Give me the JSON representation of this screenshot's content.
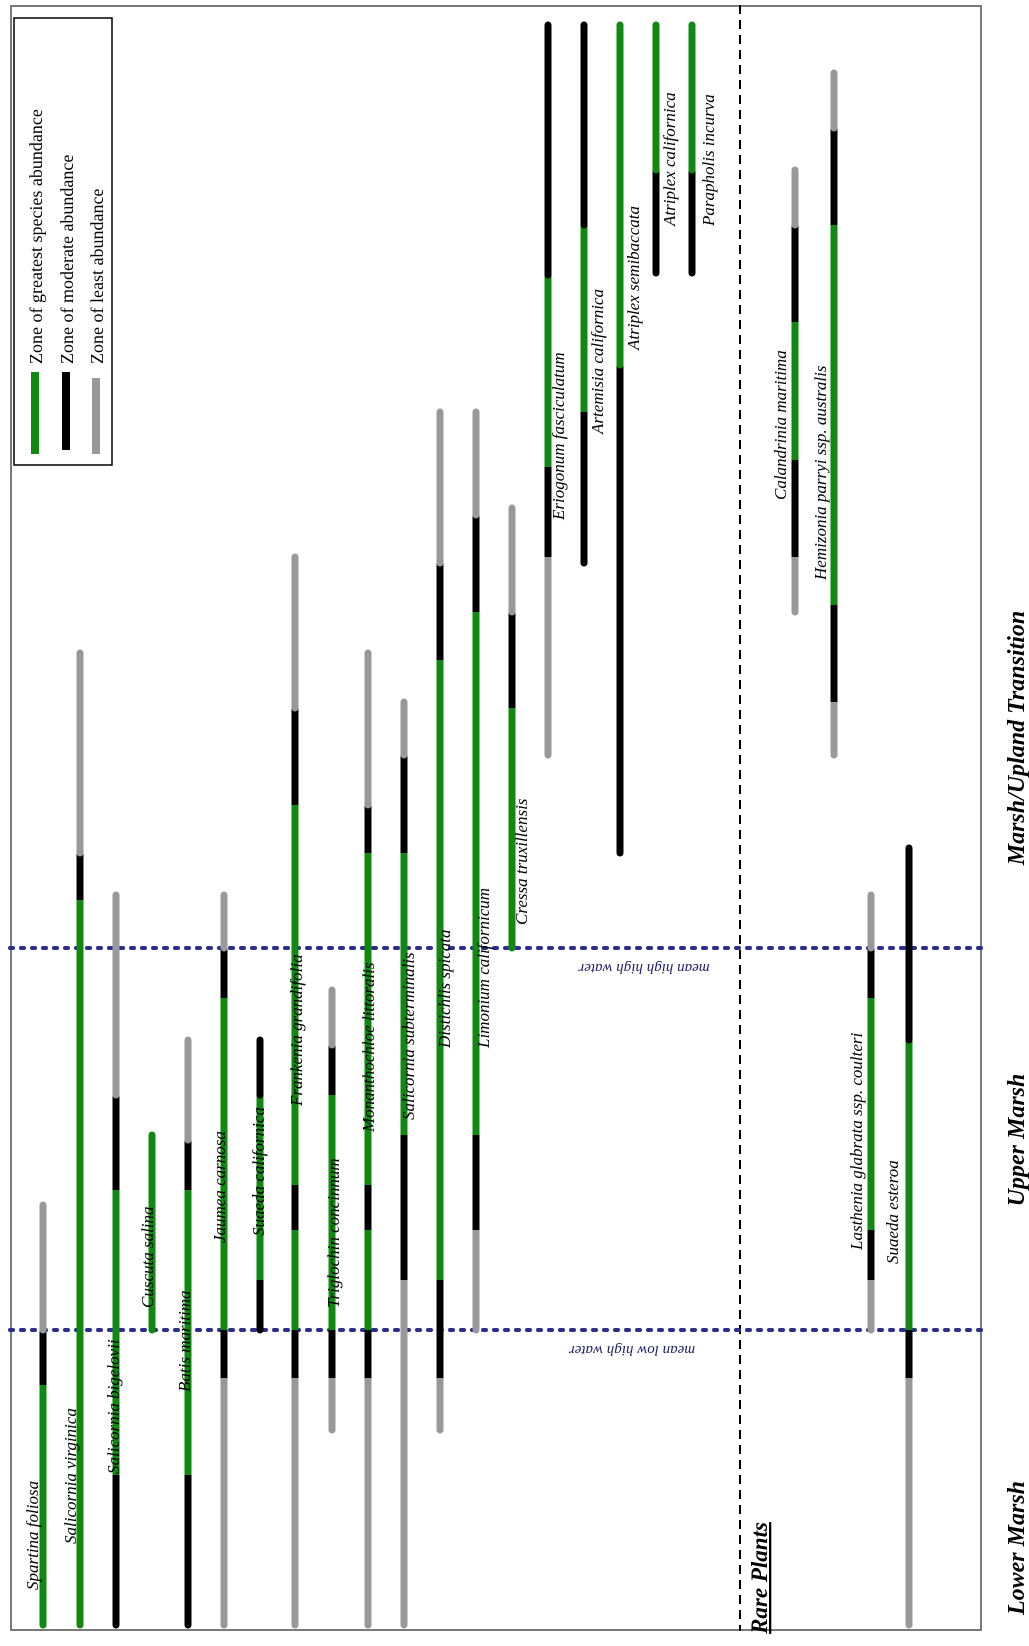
{
  "legend": {
    "items": [
      {
        "label": "Zone of greatest species abundance",
        "color": "#118811"
      },
      {
        "label": "Zone of moderate abundance",
        "color": "#000000"
      },
      {
        "label": "Zone of least abundance",
        "color": "#999999"
      }
    ]
  },
  "zones": {
    "lower": "Lower Marsh",
    "upper": "Upper Marsh",
    "transition": "Marsh/Upland Transition"
  },
  "tide_lines": {
    "low": "mean low high water",
    "high": "mean high high water"
  },
  "rare_section_label": "Rare Plants",
  "species": [
    {
      "name": "Spartina foliosa",
      "segments": [
        [
          1625,
          1385,
          "g"
        ],
        [
          1385,
          1330,
          "b"
        ],
        [
          1330,
          1205,
          "y"
        ]
      ]
    },
    {
      "name": "Salicornia virginica",
      "segments": [
        [
          1625,
          900,
          "g"
        ],
        [
          900,
          853,
          "b"
        ],
        [
          853,
          653,
          "y"
        ]
      ]
    },
    {
      "name": "Salicornia bigelovii",
      "segments": [
        [
          1625,
          1475,
          "b"
        ],
        [
          1475,
          1190,
          "g"
        ],
        [
          1190,
          1095,
          "b"
        ],
        [
          1095,
          895,
          "y"
        ]
      ]
    },
    {
      "name": "Cuscuta salina",
      "segments": [
        [
          1330,
          1135,
          "g"
        ]
      ]
    },
    {
      "name": "Batis maritima",
      "segments": [
        [
          1625,
          1475,
          "b"
        ],
        [
          1475,
          1190,
          "g"
        ],
        [
          1190,
          1140,
          "b"
        ],
        [
          1140,
          1040,
          "y"
        ]
      ]
    },
    {
      "name": "Jaumea carnosa",
      "segments": [
        [
          1625,
          1378,
          "y"
        ],
        [
          1378,
          1330,
          "b"
        ],
        [
          1330,
          998,
          "g"
        ],
        [
          998,
          948,
          "b"
        ],
        [
          948,
          895,
          "y"
        ]
      ]
    },
    {
      "name": "Suaeda californica",
      "segments": [
        [
          1330,
          1280,
          "b"
        ],
        [
          1280,
          1095,
          "g"
        ],
        [
          1095,
          1040,
          "b"
        ]
      ]
    },
    {
      "name": "Frankenia grandifolia",
      "segments": [
        [
          1625,
          1378,
          "y"
        ],
        [
          1378,
          1330,
          "b"
        ],
        [
          1330,
          1230,
          "g"
        ],
        [
          1230,
          1185,
          "b"
        ],
        [
          1185,
          805,
          "g"
        ],
        [
          805,
          708,
          "b"
        ],
        [
          708,
          557,
          "y"
        ]
      ]
    },
    {
      "name": "Triglochin concinnum",
      "segments": [
        [
          1430,
          1378,
          "y"
        ],
        [
          1378,
          1330,
          "b"
        ],
        [
          1330,
          1095,
          "g"
        ],
        [
          1095,
          1045,
          "b"
        ],
        [
          1045,
          990,
          "y"
        ]
      ]
    },
    {
      "name": "Monanthochloe littoralis",
      "segments": [
        [
          1625,
          1378,
          "y"
        ],
        [
          1378,
          1330,
          "b"
        ],
        [
          1330,
          1230,
          "g"
        ],
        [
          1230,
          1185,
          "b"
        ],
        [
          1185,
          853,
          "g"
        ],
        [
          853,
          805,
          "b"
        ],
        [
          805,
          653,
          "y"
        ]
      ]
    },
    {
      "name": "Salicornia subterminalis",
      "segments": [
        [
          1625,
          1280,
          "y"
        ],
        [
          1280,
          1135,
          "b"
        ],
        [
          1135,
          853,
          "g"
        ],
        [
          853,
          755,
          "b"
        ],
        [
          755,
          702,
          "y"
        ]
      ]
    },
    {
      "name": "Distichlis spicata",
      "segments": [
        [
          1430,
          1378,
          "y"
        ],
        [
          1378,
          1330,
          "b"
        ],
        [
          1330,
          1280,
          "b"
        ],
        [
          1280,
          660,
          "g"
        ],
        [
          660,
          563,
          "b"
        ],
        [
          563,
          412,
          "y"
        ]
      ]
    },
    {
      "name": "Limonium californicum",
      "segments": [
        [
          1330,
          1230,
          "y"
        ],
        [
          1230,
          1135,
          "b"
        ],
        [
          1135,
          612,
          "g"
        ],
        [
          612,
          515,
          "b"
        ],
        [
          515,
          412,
          "y"
        ]
      ]
    },
    {
      "name": "Cressa truxillensis",
      "segments": [
        [
          948,
          708,
          "g"
        ],
        [
          708,
          612,
          "b"
        ],
        [
          612,
          508,
          "y"
        ]
      ]
    },
    {
      "name": "Eriogonum fasciculatum",
      "segments": [
        [
          755,
          557,
          "y"
        ],
        [
          557,
          467,
          "b"
        ],
        [
          467,
          275,
          "g"
        ],
        [
          275,
          25,
          "b"
        ]
      ]
    },
    {
      "name": "Artemisia californica",
      "segments": [
        [
          563,
          412,
          "b"
        ],
        [
          412,
          225,
          "g"
        ],
        [
          225,
          25,
          "b"
        ]
      ]
    },
    {
      "name": "Atriplex semibaccata",
      "segments": [
        [
          853,
          365,
          "b"
        ],
        [
          365,
          25,
          "g"
        ]
      ]
    },
    {
      "name": "Atriplex californica",
      "segments": [
        [
          273,
          170,
          "b"
        ],
        [
          170,
          25,
          "g"
        ]
      ]
    },
    {
      "name": "Parapholis incurva",
      "segments": [
        [
          273,
          170,
          "b"
        ],
        [
          170,
          25,
          "g"
        ]
      ]
    }
  ],
  "rare_species": [
    {
      "name": "Calandrinia maritima",
      "segments": [
        [
          612,
          557,
          "y"
        ],
        [
          557,
          460,
          "b"
        ],
        [
          460,
          322,
          "g"
        ],
        [
          322,
          225,
          "b"
        ],
        [
          225,
          170,
          "y"
        ]
      ]
    },
    {
      "name": "Hemizonia parryi ssp. australis",
      "segments": [
        [
          755,
          702,
          "y"
        ],
        [
          702,
          605,
          "b"
        ],
        [
          605,
          225,
          "g"
        ],
        [
          225,
          128,
          "b"
        ],
        [
          128,
          73,
          "y"
        ]
      ]
    },
    {
      "name": "Lasthenia glabrata ssp. coulteri",
      "segments": [
        [
          1330,
          1280,
          "y"
        ],
        [
          1280,
          1230,
          "b"
        ],
        [
          1230,
          998,
          "g"
        ],
        [
          998,
          948,
          "b"
        ],
        [
          948,
          895,
          "y"
        ]
      ]
    },
    {
      "name": "Suaeda esteroa",
      "segments": [
        [
          1625,
          1378,
          "y"
        ],
        [
          1378,
          1330,
          "b"
        ],
        [
          1330,
          1040,
          "g"
        ],
        [
          1040,
          848,
          "b"
        ]
      ]
    }
  ]
}
